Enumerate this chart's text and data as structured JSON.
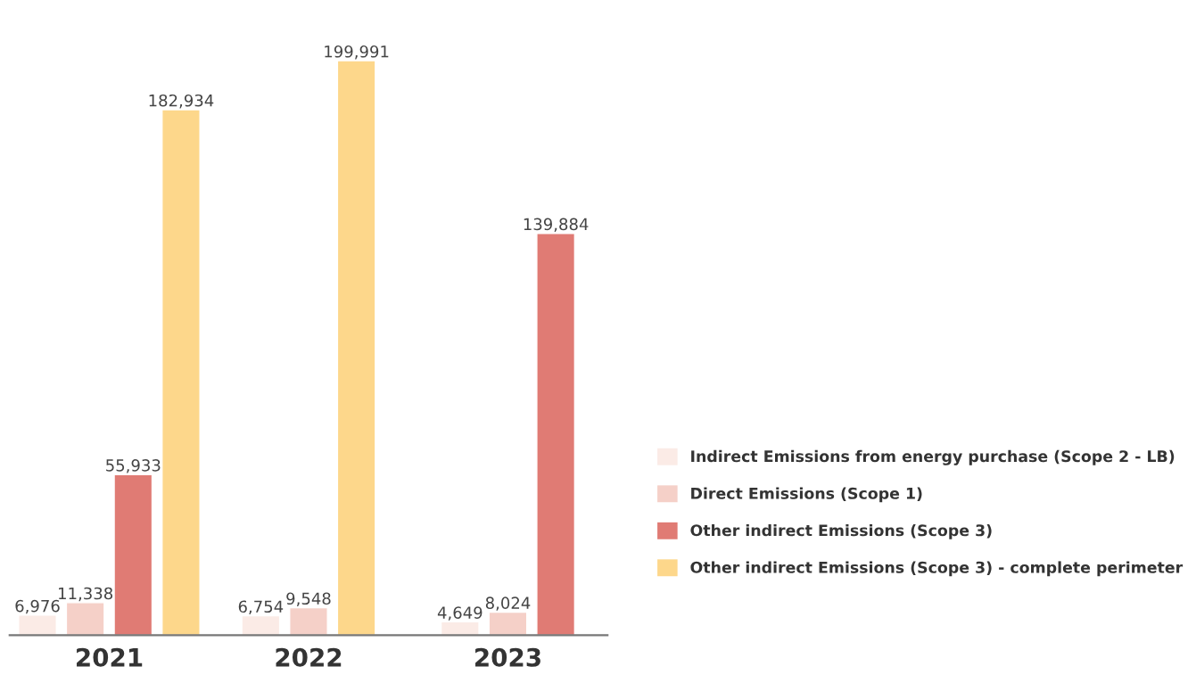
{
  "chart_data": {
    "type": "bar",
    "categories": [
      "2021",
      "2022",
      "2023"
    ],
    "series": [
      {
        "name": "Indirect Emissions from energy purchase (Scope 2 - LB)",
        "color": "#fbebe6",
        "values": [
          6976,
          6754,
          4649
        ],
        "value_labels": [
          "6,976",
          "6,754",
          "4,649"
        ]
      },
      {
        "name": "Direct Emissions (Scope 1)",
        "color": "#f5d0c8",
        "values": [
          11338,
          9548,
          8024
        ],
        "value_labels": [
          "11,338",
          "9,548",
          "8,024"
        ]
      },
      {
        "name": "Other indirect Emissions (Scope 3)",
        "color": "#e07b74",
        "values": [
          55933,
          null,
          139884
        ],
        "value_labels": [
          "55,933",
          null,
          "139,884"
        ]
      },
      {
        "name": "Other indirect Emissions (Scope 3) - complete perimeter",
        "color": "#fdd78b",
        "values": [
          182934,
          199991,
          null
        ],
        "value_labels": [
          "182,934",
          "199,991",
          null
        ]
      }
    ],
    "legend": "right",
    "grid": false
  }
}
